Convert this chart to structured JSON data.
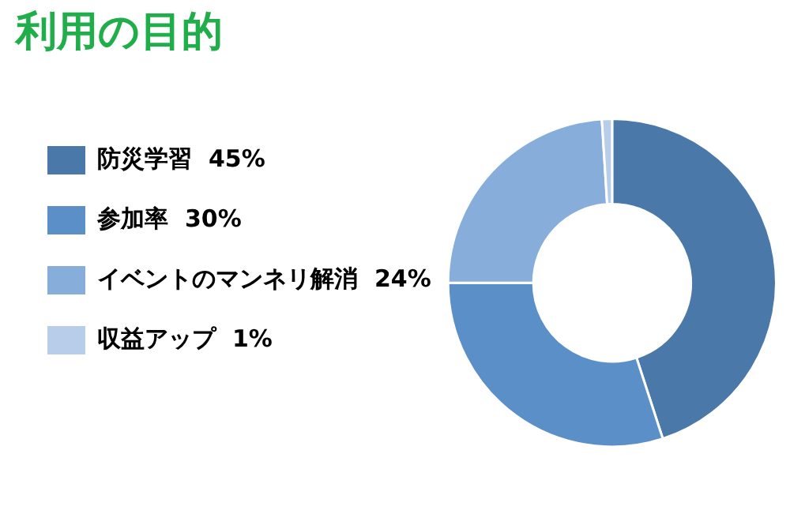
{
  "chart_data": {
    "type": "donut",
    "title": "利用の目的",
    "categories": [
      "防災学習",
      "参加率",
      "イベントのマンネリ解消",
      "収益アップ"
    ],
    "values": [
      45,
      30,
      24,
      1
    ],
    "value_labels": [
      "45%",
      "30%",
      "24%",
      "1%"
    ],
    "colors": [
      "#4a78a8",
      "#5b8fc8",
      "#87aedb",
      "#b7cdea"
    ],
    "legend": "left"
  }
}
